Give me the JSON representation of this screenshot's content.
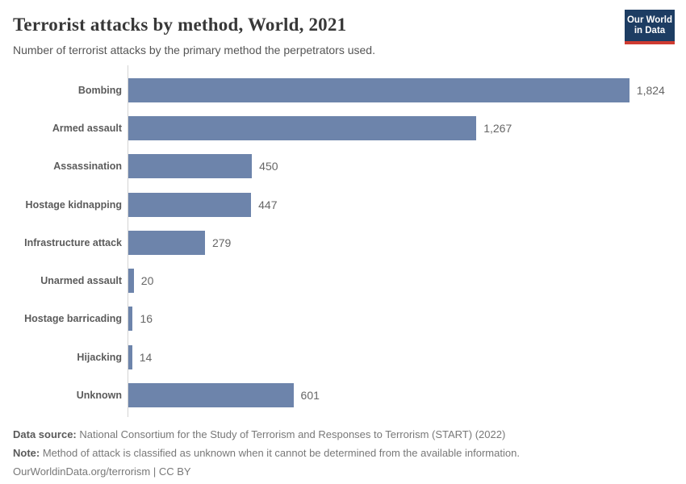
{
  "header": {
    "title": "Terrorist attacks by method, World, 2021",
    "subtitle": "Number of terrorist attacks by the primary method the perpetrators used.",
    "logo": {
      "line1": "Our World",
      "line2": "in Data",
      "bg_color": "#1d3d63",
      "stripe_color": "#cf3b31"
    }
  },
  "chart_data": {
    "type": "bar",
    "orientation": "horizontal",
    "title": "Terrorist attacks by method, World, 2021",
    "subtitle": "Number of terrorist attacks by the primary method the perpetrators used.",
    "categories": [
      "Bombing",
      "Armed assault",
      "Assassination",
      "Hostage kidnapping",
      "Infrastructure attack",
      "Unarmed assault",
      "Hostage barricading",
      "Hijacking",
      "Unknown"
    ],
    "values": [
      1824,
      1267,
      450,
      447,
      279,
      20,
      16,
      14,
      601
    ],
    "value_labels": [
      "1,824",
      "1,267",
      "450",
      "447",
      "279",
      "20",
      "16",
      "14",
      "601"
    ],
    "xlabel": "",
    "ylabel": "",
    "xlim": [
      0,
      1824
    ],
    "grid": false,
    "legend": false,
    "bar_color": "#6d84ab"
  },
  "footer": {
    "source_label": "Data source:",
    "source_text": " National Consortium for the Study of Terrorism and Responses to Terrorism (START) (2022)",
    "note_label": "Note:",
    "note_text": " Method of attack is classified as unknown when it cannot be determined from the available information.",
    "url_text": "OurWorldinData.org/terrorism",
    "separator": " | ",
    "license_text": "CC BY"
  }
}
